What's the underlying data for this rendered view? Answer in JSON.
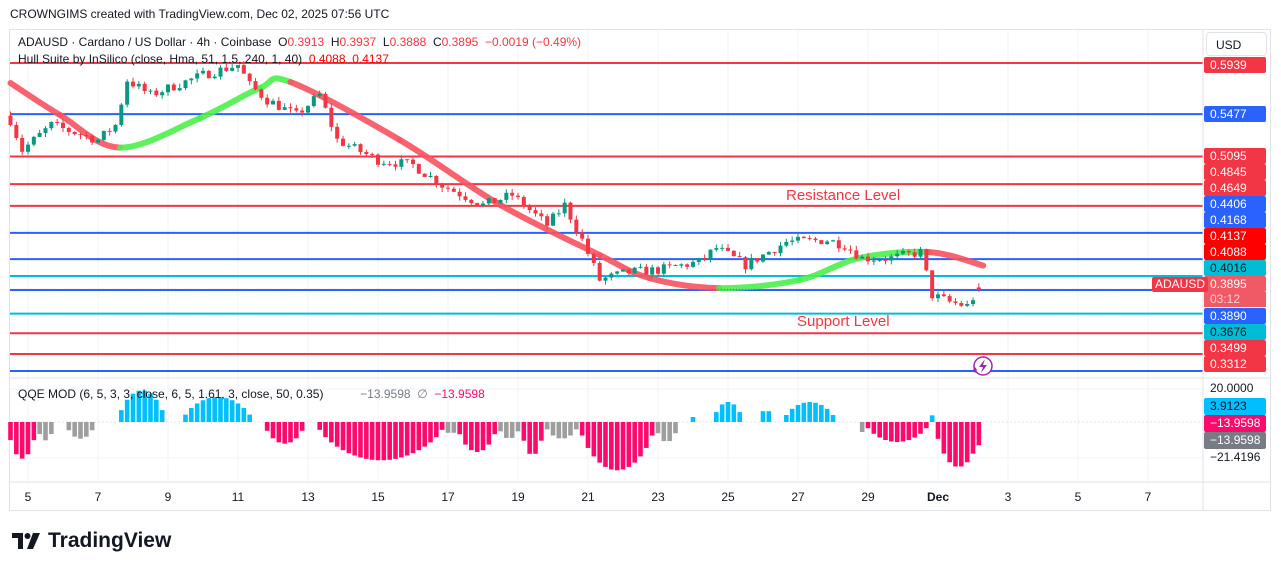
{
  "credit": "CROWNGIMS created with TradingView.com, Dec 02, 2025 07:56 UTC",
  "legend": {
    "symbol": "ADAUSD · Cardano / US Dollar · 4h · Coinbase",
    "o_label": "O",
    "o": "0.3913",
    "h_label": "H",
    "h": "0.3937",
    "l_label": "L",
    "l": "0.3888",
    "c_label": "C",
    "c": "0.3895",
    "change": "−0.0019 (−0.49%)",
    "hull_name": "Hull Suite by InSilico (close, Hma, 51, 1.5, 240, 1, 40)",
    "hull_v1": "0.4088",
    "hull_v2": "0.4137",
    "qqe_name": "QQE MOD (6, 5, 3, 3, close, 6, 5, 1.61, 3, close, 50, 0.35)",
    "qqe_v1": "−13.9598",
    "qqe_sym": "∅",
    "qqe_v2": "−13.9598"
  },
  "currency": "USD",
  "annotations": {
    "resistance": "Resistance Level",
    "support": "Support Level"
  },
  "price_tag": {
    "symbol": "ADAUSD",
    "price": "0.3895",
    "countdown": "03:12"
  },
  "brand": "TradingView",
  "colors": {
    "up": "#089981",
    "down": "#f23645",
    "blue_line": "#2962ff",
    "red_line": "#f23645",
    "cyan_line": "#00bcd4",
    "hull_up": "#4cf04c",
    "hull_down": "#f7525f",
    "qqe_up": "#00bfff",
    "qqe_down": "#ff0a6c",
    "qqe_neutral": "#9e9e9e"
  },
  "chart_data": [
    {
      "type": "candlestick",
      "interval": "4h",
      "ylim": [
        0.3158,
        0.5939
      ],
      "x_ticks": [
        "5",
        "7",
        "9",
        "11",
        "13",
        "15",
        "17",
        "19",
        "21",
        "23",
        "25",
        "27",
        "29",
        "Dec",
        "3",
        "5",
        "7"
      ],
      "levels": [
        {
          "price": "0.5939",
          "color": "red"
        },
        {
          "price": "0.5477",
          "color": "blue"
        },
        {
          "price": "0.5095",
          "color": "red"
        },
        {
          "price": "0.4845",
          "color": "red"
        },
        {
          "price": "0.4649",
          "color": "red"
        },
        {
          "price": "0.4406",
          "color": "blue"
        },
        {
          "price": "0.4168",
          "color": "blue"
        },
        {
          "price": "0.4016",
          "color": "cyan"
        },
        {
          "price": "0.3890",
          "color": "blue"
        },
        {
          "price": "0.3676",
          "color": "cyan"
        },
        {
          "price": "0.3499",
          "color": "red"
        },
        {
          "price": "0.3312",
          "color": "red"
        }
      ],
      "hull_axis_labels": [
        {
          "price": "0.4137",
          "color": "#ff0000"
        },
        {
          "price": "0.4088",
          "color": "#ff0000"
        }
      ],
      "close_path": [
        [
          "2025-11-04T12:00",
          0.5424
        ],
        [
          "2025-11-04T20:00",
          0.5153
        ],
        [
          "2025-11-05T16:00",
          0.5379
        ],
        [
          "2025-11-07T00:00",
          0.5244
        ],
        [
          "2025-11-07T12:00",
          0.5379
        ],
        [
          "2025-11-07T20:00",
          0.5786
        ],
        [
          "2025-11-08T12:00",
          0.565
        ],
        [
          "2025-11-10T00:00",
          0.5831
        ],
        [
          "2025-11-11T00:00",
          0.5921
        ],
        [
          "2025-11-11T08:00",
          0.574
        ],
        [
          "2025-11-11T20:00",
          0.5605
        ],
        [
          "2025-11-12T16:00",
          0.5469
        ],
        [
          "2025-11-13T08:00",
          0.565
        ],
        [
          "2025-11-13T20:00",
          0.5244
        ],
        [
          "2025-11-15T00:00",
          0.5063
        ],
        [
          "2025-11-16T00:00",
          0.5018
        ],
        [
          "2025-11-16T20:00",
          0.4837
        ],
        [
          "2025-11-18T00:00",
          0.4657
        ],
        [
          "2025-11-18T20:00",
          0.4747
        ],
        [
          "2025-11-19T20:00",
          0.4476
        ],
        [
          "2025-11-20T08:00",
          0.4657
        ],
        [
          "2025-11-20T20:00",
          0.4341
        ],
        [
          "2025-11-21T08:00",
          0.398
        ],
        [
          "2025-11-22T04:00",
          0.4052
        ],
        [
          "2025-11-23T00:00",
          0.407
        ],
        [
          "2025-11-24T04:00",
          0.4142
        ],
        [
          "2025-11-24T16:00",
          0.4268
        ],
        [
          "2025-11-25T12:00",
          0.4115
        ],
        [
          "2025-11-26T16:00",
          0.4323
        ],
        [
          "2025-11-27T20:00",
          0.4341
        ],
        [
          "2025-11-28T08:00",
          0.4296
        ],
        [
          "2025-11-28T20:00",
          0.4178
        ],
        [
          "2025-11-29T16:00",
          0.4178
        ],
        [
          "2025-11-30T12:00",
          0.4232
        ],
        [
          "2025-11-30T20:00",
          0.3843
        ],
        [
          "2025-12-01T08:00",
          0.3781
        ],
        [
          "2025-12-01T20:00",
          0.3745
        ],
        [
          "2025-12-02T04:00",
          0.3895
        ]
      ],
      "hull": [
        [
          "2025-11-04T12:00",
          0.5758,
          "down"
        ],
        [
          "2025-11-05T22:00",
          0.5469,
          "down"
        ],
        [
          "2025-11-07T15:00",
          0.5175,
          "up"
        ],
        [
          "2025-11-09T22:00",
          0.5442,
          "up"
        ],
        [
          "2025-11-11T15:00",
          0.5713,
          "up"
        ],
        [
          "2025-11-12T12:00",
          0.5767,
          "down"
        ],
        [
          "2025-11-15T15:00",
          0.5244,
          "down"
        ],
        [
          "2025-11-18T12:00",
          0.4657,
          "down"
        ],
        [
          "2025-11-21T08:00",
          0.4205,
          "down"
        ],
        [
          "2025-11-22T18:00",
          0.3998,
          "down"
        ],
        [
          "2025-11-24T18:00",
          0.3907,
          "up"
        ],
        [
          "2025-11-27T01:00",
          0.398,
          "up"
        ],
        [
          "2025-11-28T18:00",
          0.4178,
          "up"
        ],
        [
          "2025-11-30T18:00",
          0.4232,
          "down"
        ],
        [
          "2025-12-02T07:00",
          0.411,
          "down"
        ]
      ]
    },
    {
      "type": "histogram",
      "name": "QQE MOD",
      "ylim": [
        -21.4196,
        20.0
      ],
      "axis_labels": [
        {
          "value": "20.0000",
          "color": "none"
        },
        {
          "value": "3.9123",
          "color": "#00bfff"
        },
        {
          "value": "−13.9598",
          "color": "#ff0a6c"
        },
        {
          "value": "−13.9598",
          "color": "#787b86"
        },
        {
          "value": "−21.4196",
          "color": "none"
        }
      ],
      "segments": [
        [
          "2025-11-04T12:00",
          "2025-11-05T08:00",
          "down",
          -22
        ],
        [
          "2025-11-05T08:00",
          "2025-11-05T20:00",
          "neutral",
          -11
        ],
        [
          "2025-11-06T04:00",
          "2025-11-07T00:00",
          "neutral",
          -10
        ],
        [
          "2025-11-07T16:00",
          "2025-11-09T00:00",
          "up",
          19
        ],
        [
          "2025-11-09T12:00",
          "2025-11-11T12:00",
          "up",
          15
        ],
        [
          "2025-11-11T20:00",
          "2025-11-13T00:00",
          "down",
          -13
        ],
        [
          "2025-11-13T08:00",
          "2025-11-17T00:00",
          "down",
          -23
        ],
        [
          "2025-11-17T00:00",
          "2025-11-17T08:00",
          "neutral",
          -8
        ],
        [
          "2025-11-17T08:00",
          "2025-11-18T12:00",
          "down",
          -18
        ],
        [
          "2025-11-18T12:00",
          "2025-11-19T04:00",
          "neutral",
          -10
        ],
        [
          "2025-11-19T04:00",
          "2025-11-19T20:00",
          "down",
          -20
        ],
        [
          "2025-11-19T20:00",
          "2025-11-20T20:00",
          "neutral",
          -10
        ],
        [
          "2025-11-20T20:00",
          "2025-11-23T00:00",
          "down",
          -29
        ],
        [
          "2025-11-23T00:00",
          "2025-11-23T16:00",
          "neutral",
          -12
        ],
        [
          "2025-11-24T00:00",
          "2025-11-24T04:00",
          "up",
          3
        ],
        [
          "2025-11-24T16:00",
          "2025-11-25T12:00",
          "up",
          12
        ],
        [
          "2025-11-26T00:00",
          "2025-11-26T08:00",
          "up",
          8
        ],
        [
          "2025-11-26T16:00",
          "2025-11-28T04:00",
          "up",
          12
        ],
        [
          "2025-11-28T20:00",
          "2025-11-29T00:00",
          "neutral",
          -6
        ],
        [
          "2025-11-29T00:00",
          "2025-11-30T20:00",
          "down",
          -12
        ],
        [
          "2025-11-30T20:00",
          "2025-12-01T00:00",
          "up",
          4
        ],
        [
          "2025-12-01T00:00",
          "2025-12-02T08:00",
          "down",
          -27
        ]
      ],
      "last_value": -13.9598
    }
  ]
}
